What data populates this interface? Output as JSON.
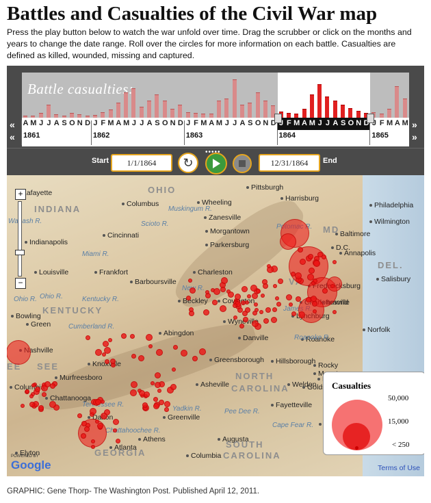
{
  "title": "Battles and Casualties of the Civil War map",
  "intro": "Press the play button below to watch the war unfold over time. Drag the scrubber or click on the months and years to change the date range. Roll over the circles for more information on each battle. Casualties are defined as killed, wounded, missing and captured.",
  "timeline": {
    "label": "Battle casualties:",
    "months": [
      "A",
      "M",
      "J",
      "J",
      "A",
      "S",
      "O",
      "N",
      "D",
      "J",
      "F",
      "M",
      "A",
      "M",
      "J",
      "J",
      "A",
      "S",
      "O",
      "N",
      "D",
      "J",
      "F",
      "M",
      "A",
      "M",
      "J",
      "J",
      "A",
      "S",
      "O",
      "N",
      "D",
      "J",
      "F",
      "M",
      "A",
      "M",
      "J",
      "J",
      "A",
      "S",
      "O",
      "N",
      "D",
      "J",
      "F",
      "M",
      "A",
      "M"
    ],
    "years": [
      "1861",
      "1862",
      "1863",
      "1864",
      "1865"
    ],
    "selected_range_start_month_index": 33,
    "selected_range_end_month_index": 44,
    "bar_heights_pct": [
      3,
      4,
      10,
      30,
      6,
      4,
      10,
      6,
      3,
      5,
      12,
      18,
      35,
      60,
      70,
      25,
      40,
      55,
      40,
      20,
      30,
      12,
      10,
      8,
      8,
      40,
      45,
      92,
      30,
      35,
      60,
      40,
      28,
      14,
      10,
      8,
      20,
      55,
      80,
      50,
      40,
      30,
      22,
      15,
      10,
      12,
      8,
      20,
      75,
      45
    ]
  },
  "controls": {
    "start_label": "Start",
    "end_label": "End",
    "start_date": "1/1/1864",
    "end_date": "12/31/1864",
    "reset_icon": "reload-icon",
    "play_icon": "play-icon",
    "stop_icon": "stop-icon"
  },
  "map": {
    "states": [
      "OHIO",
      "INDIANA",
      "KENTUCKY",
      "NORTH",
      "CAROLINA",
      "SOUTH",
      "CAROLINA",
      "GEORGIA",
      "MD.",
      "DEL.",
      "EE",
      "SEE",
      "VA"
    ],
    "cities": [
      "Lafayette",
      "Pittsburgh",
      "Harrisburg",
      "Philadelphia",
      "Columbus",
      "Wheeling",
      "Indianapolis",
      "Zanesville",
      "Wilmington",
      "Morgantown",
      "Cincinnati",
      "Parkersburg",
      "Baltimore",
      "Annapolis",
      "Louisville",
      "Frankfort",
      "Barboursville",
      "Charleston",
      "Salisbury",
      "Fredericksburg",
      "Beckley",
      "Covington",
      "Charlottesville",
      "Bowling",
      "Green",
      "Lynchburg",
      "Wyneville",
      "Abingdon",
      "Norfolk",
      "Danville",
      "Roanoke",
      "Nashville",
      "Knoxville",
      "Greensborough",
      "Hillsborough",
      "Weldon",
      "Rocky",
      "Murfreesboro",
      "Asheville",
      "Raleigh",
      "Columbia",
      "Chattanooga",
      "Fayetteville",
      "Golds",
      "Dalton",
      "Greenville",
      "Wilmington",
      "Elyton",
      "Athens",
      "Augusta",
      "Atlanta",
      "Columbia",
      "D.C.",
      "hmond",
      "Mount"
    ],
    "rivers": [
      "Muskingum R.",
      "Scioto R.",
      "Miami R.",
      "Ohio R.",
      "Kentucky R.",
      "Cumberland R.",
      "New R.",
      "Ohio R.",
      "James R.",
      "Roanoke R.",
      "Tennessee R.",
      "Chattahoochee R.",
      "Potomac R.",
      "Yadkin R.",
      "Cape Fear R.",
      "Pee Dee R.",
      "Wabash R."
    ],
    "terms": "Terms of Use",
    "logo": "Google",
    "powered": "POWERED BY"
  },
  "legend": {
    "title": "Casualties",
    "values": [
      "50,000",
      "15,000",
      "< 250"
    ]
  },
  "credit": "GRAPHIC: Gene Thorp- The Washington Post. Published April 12, 2011."
}
